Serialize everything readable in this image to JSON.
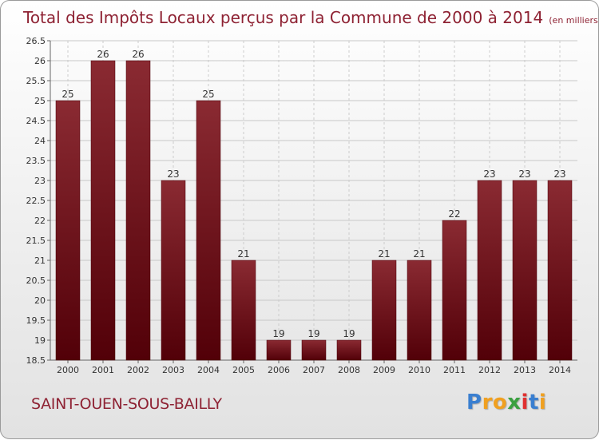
{
  "chart_data": {
    "type": "bar",
    "title": "Total des Impôts Locaux perçus par la Commune de 2000 à 2014",
    "subtitle": "(en milliers d'€)",
    "categories": [
      "2000",
      "2001",
      "2002",
      "2003",
      "2004",
      "2005",
      "2006",
      "2007",
      "2008",
      "2009",
      "2010",
      "2011",
      "2012",
      "2013",
      "2014"
    ],
    "values": [
      25,
      26,
      26,
      23,
      25,
      21,
      19,
      19,
      19,
      21,
      21,
      22,
      23,
      23,
      23
    ],
    "data_labels": [
      "25",
      "26",
      "26",
      "23",
      "25",
      "21",
      "19",
      "19",
      "19",
      "21",
      "21",
      "22",
      "23",
      "23",
      "23"
    ],
    "ylim": [
      18.5,
      26.5
    ],
    "yticks": [
      "18.5",
      "19",
      "19.5",
      "20",
      "20.5",
      "21",
      "21.5",
      "22",
      "22.5",
      "23",
      "23.5",
      "24",
      "24.5",
      "25",
      "25.5",
      "26",
      "26.5"
    ],
    "xlabel": "",
    "ylabel": "",
    "grid": true,
    "bar_color": "#7a1a24",
    "bar_color_dark": "#5a0a12"
  },
  "commune": "SAINT-OUEN-SOUS-BAILLY",
  "logo": {
    "letters": [
      "P",
      "r",
      "o",
      "x",
      "i",
      "t",
      "i"
    ],
    "colors": [
      "#3a7fd0",
      "#f0a020",
      "#f0a020",
      "#3aa040",
      "#e03030",
      "#3a7fd0",
      "#f0a020"
    ]
  }
}
